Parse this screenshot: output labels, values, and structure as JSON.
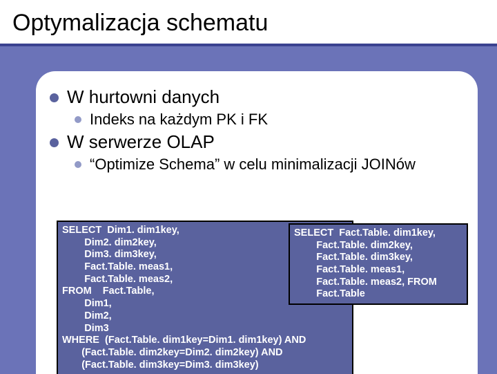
{
  "title": "Optymalizacja schematu",
  "bullets": {
    "b1": "W hurtowni danych",
    "b1_1": "Indeks na każdym PK i FK",
    "b2": "W serwerze OLAP",
    "b2_1": "“Optimize Schema” w celu minimalizacji JOINów"
  },
  "code1": "SELECT  Dim1. dim1key,\n        Dim2. dim2key,\n        Dim3. dim3key,\n        Fact.Table. meas1,\n        Fact.Table. meas2,\nFROM    Fact.Table,\n        Dim1,\n        Dim2,\n        Dim3\nWHERE  (Fact.Table. dim1key=Dim1. dim1key) AND\n       (Fact.Table. dim2key=Dim2. dim2key) AND\n       (Fact.Table. dim3key=Dim3. dim3key)",
  "code2": "SELECT  Fact.Table. dim1key,\n        Fact.Table. dim2key,\n        Fact.Table. dim3key,\n        Fact.Table. meas1,\n        Fact.Table. meas2, FROM\n        Fact.Table",
  "colors": {
    "slide_bg": "#6b73b8",
    "title_underline": "#3a4290",
    "dot_l1": "#5a629e",
    "dot_l2": "#929ac7",
    "code_bg": "#5a629e",
    "code_border": "#000000",
    "code_text": "#ffffff",
    "content_bg": "#ffffff"
  },
  "layout": {
    "slide_width": 720,
    "slide_height": 540,
    "content_radius": 28
  }
}
